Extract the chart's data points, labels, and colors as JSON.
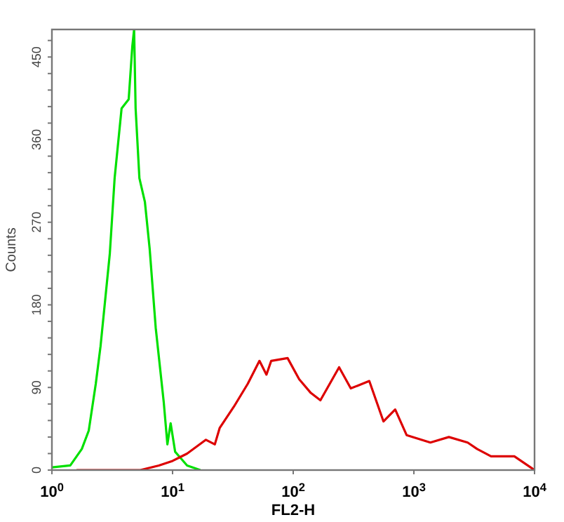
{
  "chart_data": {
    "type": "line",
    "xlabel": "FL2-H",
    "ylabel": "Counts",
    "log": "x",
    "grid": false,
    "marker": "none",
    "line_style": "solid",
    "xlim": [
      1,
      10000
    ],
    "xticks": [
      {
        "value": 1,
        "label": "10$^{0}$"
      },
      {
        "value": 10,
        "label": "10$^{1}$"
      },
      {
        "value": 100,
        "label": "10$^{2}$"
      },
      {
        "value": 1000,
        "label": "10$^{3}$"
      },
      {
        "value": 10000,
        "label": "10$^{4}$"
      }
    ],
    "ylim": [
      0,
      480
    ],
    "yticks": [
      0,
      {
        "value": 18,
        "label": null
      },
      {
        "value": 36,
        "label": null
      },
      {
        "value": 54,
        "label": null
      },
      {
        "value": 72,
        "label": null
      },
      90,
      {
        "value": 108,
        "label": null
      },
      {
        "value": 126,
        "label": null
      },
      {
        "value": 144,
        "label": null
      },
      {
        "value": 162,
        "label": null
      },
      180,
      {
        "value": 198,
        "label": null
      },
      {
        "value": 216,
        "label": null
      },
      {
        "value": 234,
        "label": null
      },
      {
        "value": 252,
        "label": null
      },
      270,
      {
        "value": 288,
        "label": null
      },
      {
        "value": 306,
        "label": null
      },
      {
        "value": 324,
        "label": null
      },
      {
        "value": 342,
        "label": null
      },
      360,
      {
        "value": 378,
        "label": null
      },
      {
        "value": 396,
        "label": null
      },
      {
        "value": 414,
        "label": null
      },
      {
        "value": 432,
        "label": null
      },
      450,
      {
        "value": 468,
        "label": null
      }
    ],
    "series": [
      {
        "color": "#00e000",
        "x": [
          1,
          1.42,
          1.77,
          2.02,
          2.31,
          2.53,
          3.02,
          3.31,
          3.78,
          4.33,
          4.64,
          4.8,
          4.94,
          5.31,
          5.9,
          6.46,
          7.25,
          8.45,
          9.06,
          9.64,
          10.5,
          13.2,
          17
        ],
        "values": [
          3,
          5,
          23,
          43,
          94,
          135,
          236,
          318,
          394,
          404,
          462,
          480,
          394,
          318,
          292,
          241,
          155,
          74,
          28,
          51,
          20,
          5,
          0
        ]
      },
      {
        "color": "#dd0000",
        "x": [
          1.6,
          5.4,
          7.7,
          10,
          13.2,
          18.9,
          22.4,
          24.6,
          32.2,
          42,
          52.5,
          60,
          65.7,
          89.8,
          112,
          140,
          168,
          240,
          300,
          427,
          560,
          700,
          872,
          1370,
          1950,
          2790,
          3340,
          4360,
          6800,
          10000
        ],
        "values": [
          0,
          0,
          5,
          10,
          18,
          33,
          28,
          46,
          69,
          94,
          119,
          104,
          119,
          122,
          99,
          84,
          76,
          112,
          89,
          97,
          53,
          66,
          38,
          30,
          36,
          30,
          23,
          15,
          15,
          0
        ]
      }
    ]
  }
}
